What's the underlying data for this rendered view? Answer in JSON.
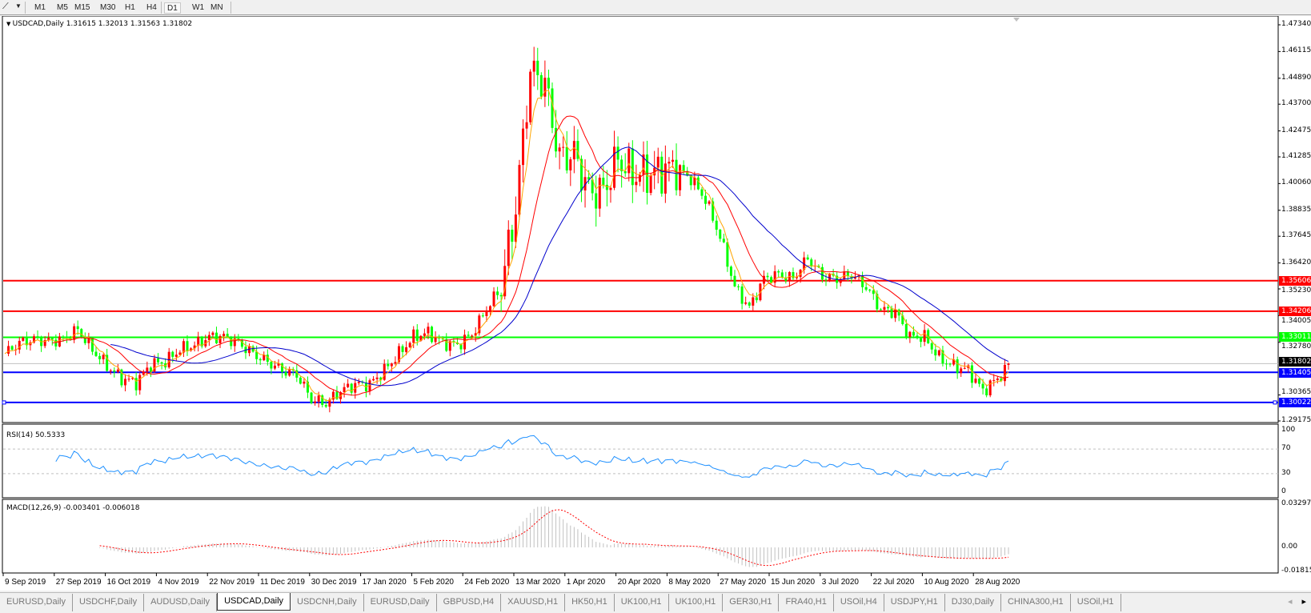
{
  "toolbar": {
    "timeframes": [
      "M1",
      "M5",
      "M15",
      "M30",
      "H1",
      "H4",
      "D1",
      "W1",
      "MN"
    ],
    "active": "D1"
  },
  "chart": {
    "header": "USDCAD,Daily  1.31615 1.32013 1.31563 1.31802",
    "rsi_label": "RSI(14) 50.5333",
    "macd_label": "MACD(12,26,9) -0.003401 -0.006018",
    "colors": {
      "bull": "#ff0000",
      "bear": "#00ff00",
      "ma_fast": "#ffa500",
      "ma_mid": "#ff0000",
      "ma_slow": "#0000cd",
      "rsi": "#1e90ff",
      "macd_signal": "#ff0000",
      "macd_hist": "#c0c0c0"
    }
  },
  "chart_data": [
    {
      "type": "candlestick",
      "title": "USDCAD,Daily",
      "open": 1.31615,
      "high": 1.32013,
      "low": 1.31563,
      "close": 1.31802,
      "ylim": [
        1.29175,
        1.4734
      ],
      "y_ticks": [
        "1.47340",
        "1.46115",
        "1.44890",
        "1.43700",
        "1.42475",
        "1.41285",
        "1.40060",
        "1.38835",
        "1.37645",
        "1.36420",
        "1.35230",
        "1.34005",
        "1.32780",
        "1.30365",
        "1.29175"
      ],
      "x_ticks": [
        "9 Sep 2019",
        "27 Sep 2019",
        "16 Oct 2019",
        "4 Nov 2019",
        "22 Nov 2019",
        "11 Dec 2019",
        "30 Dec 2019",
        "17 Jan 2020",
        "5 Feb 2020",
        "24 Feb 2020",
        "13 Mar 2020",
        "1 Apr 2020",
        "20 Apr 2020",
        "8 May 2020",
        "27 May 2020",
        "15 Jun 2020",
        "3 Jul 2020",
        "22 Jul 2020",
        "10 Aug 2020",
        "28 Aug 2020"
      ],
      "close_path": [
        1.3226,
        1.3276,
        1.3291,
        1.3284,
        1.3291,
        1.3337,
        1.3245,
        1.3169,
        1.3112,
        1.3093,
        1.3177,
        1.3188,
        1.3245,
        1.3265,
        1.3303,
        1.3303,
        1.3276,
        1.3226,
        1.3188,
        1.315,
        1.3131,
        1.3017,
        1.2997,
        1.3055,
        1.3085,
        1.3085,
        1.315,
        1.3226,
        1.3303,
        1.3322,
        1.3276,
        1.3265,
        1.3314,
        1.3429,
        1.3532,
        1.3894,
        1.4524,
        1.4467,
        1.4123,
        1.4142,
        1.3971,
        1.3971,
        1.4123,
        1.4047,
        1.4047,
        1.4066,
        1.4085,
        1.4028,
        1.3933,
        1.3761,
        1.3532,
        1.3436,
        1.357,
        1.3589,
        1.357,
        1.3665,
        1.3581,
        1.357,
        1.3589,
        1.3532,
        1.3429,
        1.3417,
        1.3303,
        1.3303,
        1.3207,
        1.3169,
        1.315,
        1.3055,
        1.3112,
        1.31802
      ],
      "levels": [
        {
          "value": "1.35606",
          "color": "#ff0000"
        },
        {
          "value": "1.34206",
          "color": "#ff0000"
        },
        {
          "value": "1.33011",
          "color": "#00ff00"
        },
        {
          "value": "1.31405",
          "color": "#0000ff"
        },
        {
          "value": "1.30022",
          "color": "#0000ff"
        }
      ],
      "current_price": "1.31802"
    },
    {
      "type": "line",
      "title": "RSI(14) 50.5333",
      "ylim": [
        0,
        100
      ],
      "y_ticks": [
        "100",
        "70",
        "30",
        "0"
      ],
      "levels": [
        70,
        30
      ],
      "last": 50.5333
    },
    {
      "type": "bar",
      "title": "MACD(12,26,9) -0.003401 -0.006018",
      "y_ticks": [
        "0.032972",
        "0.00",
        "-0.01815"
      ],
      "ylim": [
        -0.01815,
        0.032972
      ],
      "main": -0.003401,
      "signal": -0.006018
    }
  ],
  "tabs": [
    "EURUSD,Daily",
    "USDCHF,Daily",
    "AUDUSD,Daily",
    "USDCAD,Daily",
    "USDCNH,Daily",
    "EURUSD,Daily",
    "GBPUSD,H4",
    "XAUUSD,H1",
    "HK50,H1",
    "UK100,H1",
    "UK100,H1",
    "GER30,H1",
    "FRA40,H1",
    "USOil,H4",
    "USDJPY,H1",
    "DJ30,Daily",
    "CHINA300,H1",
    "USOil,H1"
  ],
  "active_tab": "USDCAD,Daily"
}
